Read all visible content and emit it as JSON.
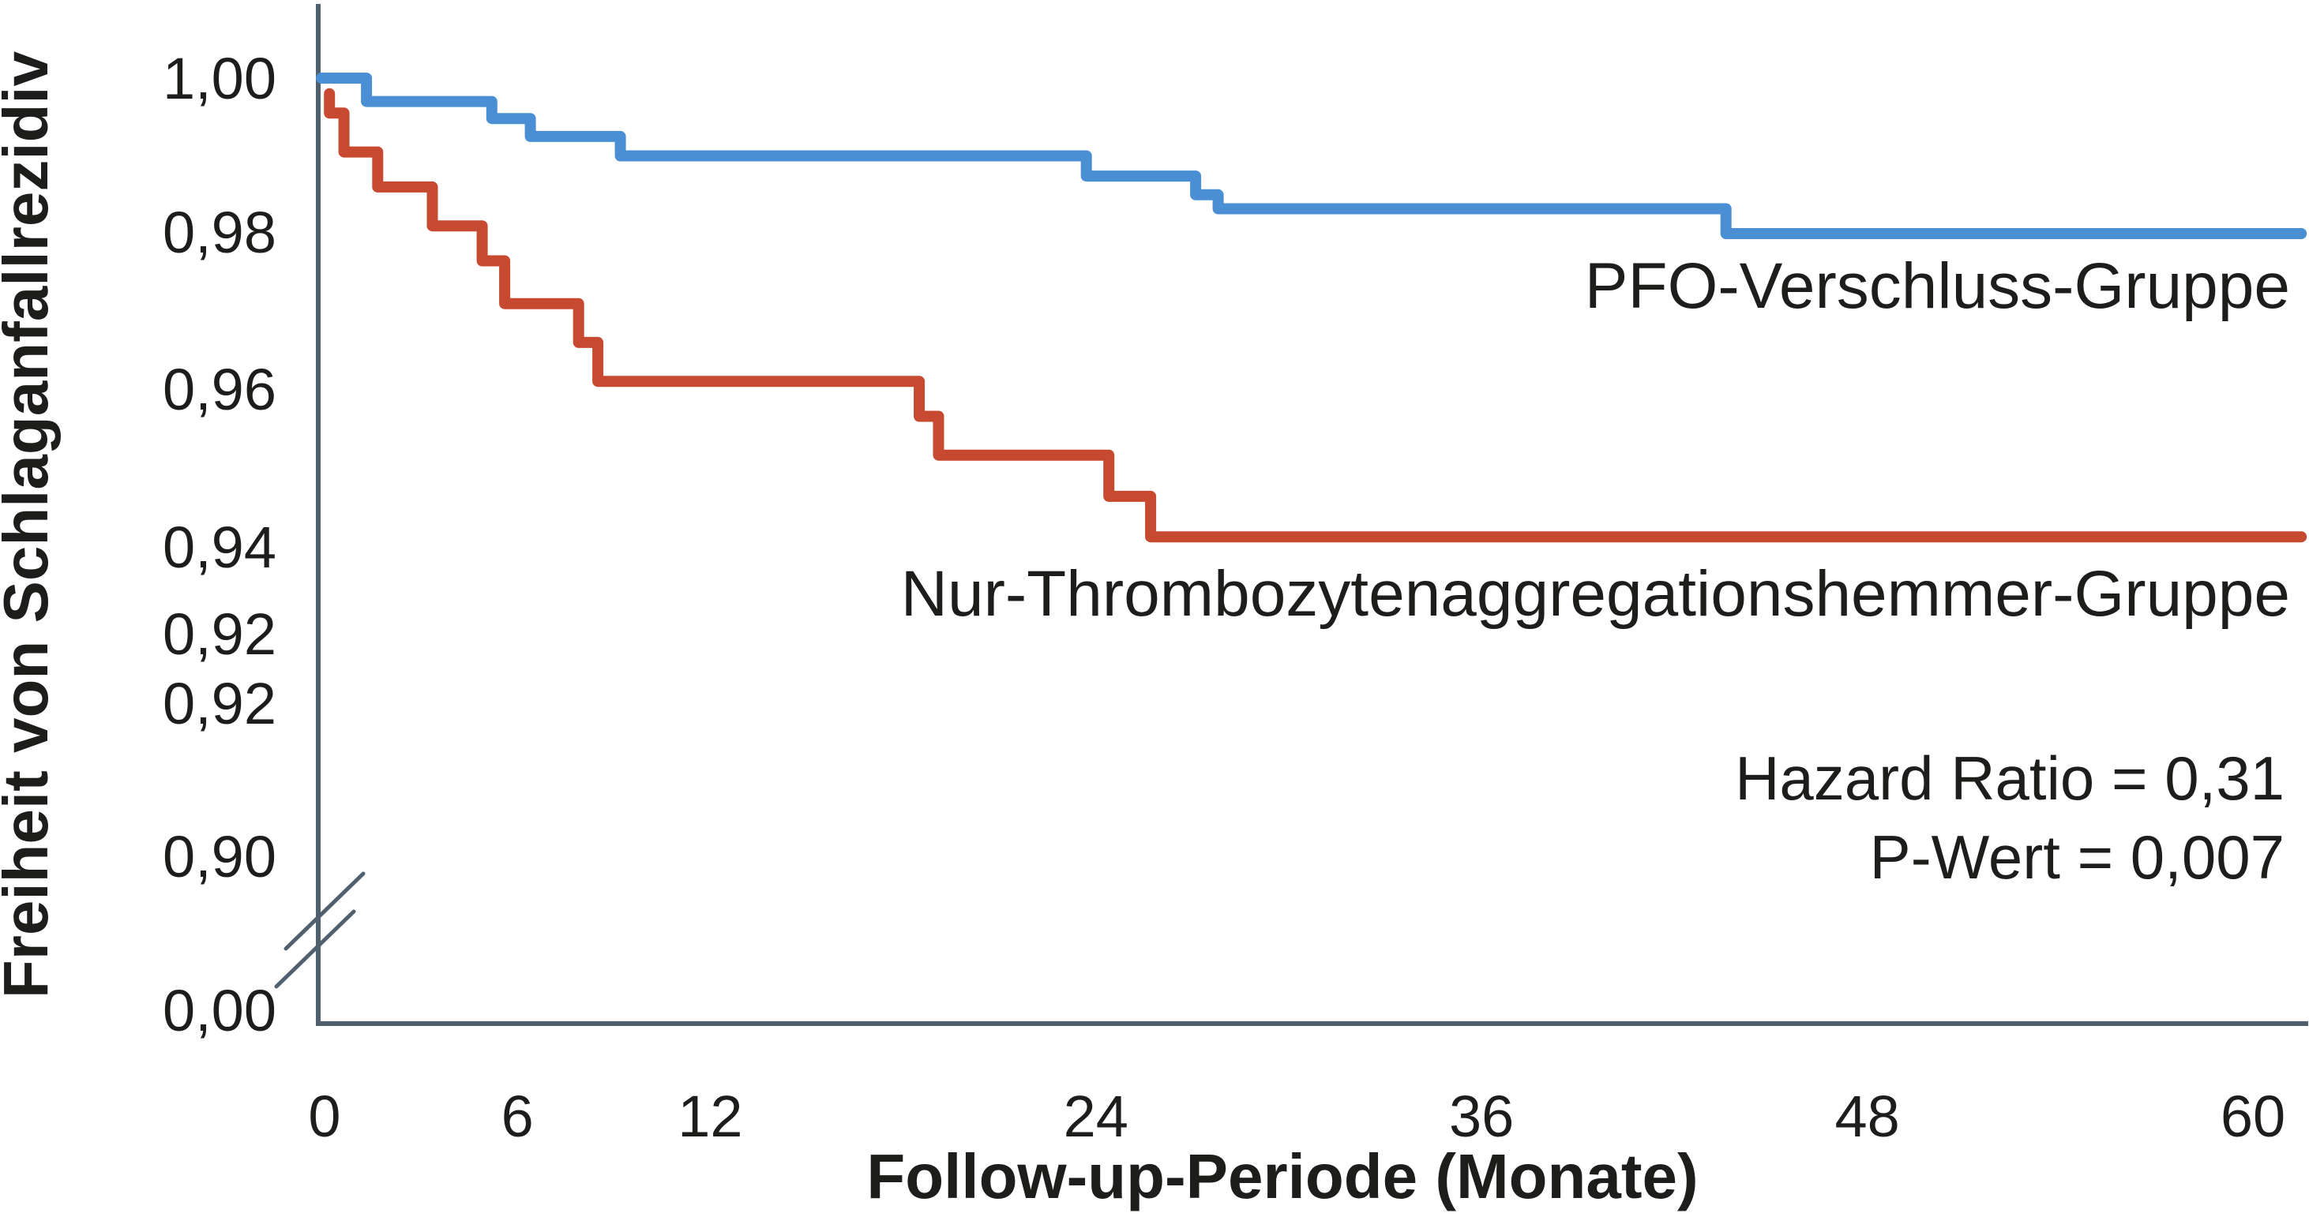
{
  "figure": {
    "y_axis_title": "Freiheit von Schlaganfallrezidiv",
    "x_axis_title": "Follow-up-Periode (Monate)",
    "annotations": {
      "hazard_ratio": "Hazard Ratio = 0,31",
      "p_value": "P-Wert = 0,007"
    }
  },
  "colors": {
    "pfo_blue": "#4a8fd3",
    "antiplatelet_red": "#c7492f",
    "axis": "#51606e",
    "text": "#1d1d1b"
  },
  "chart_data": {
    "type": "line",
    "subtype": "kaplan-meier-step",
    "title": "",
    "xlabel": "Follow-up-Periode (Monate)",
    "ylabel": "Freiheit von Schlaganfallrezidiv",
    "xlim": [
      0,
      61.7
    ],
    "ylim_upper_linear": [
      0.94,
      1.0
    ],
    "y_axis_break": true,
    "grid": false,
    "legend_position": "inline-right",
    "x_ticks": {
      "labels": [
        "0",
        "6",
        "12",
        "24",
        "36",
        "48",
        "60"
      ],
      "values": [
        0,
        6,
        12,
        24,
        36,
        48,
        60
      ]
    },
    "y_ticks": {
      "labels": [
        "1,00",
        "0,98",
        "0,96",
        "0,94",
        "0,92",
        "0,92",
        "0,90",
        "0,00"
      ],
      "values": [
        1.0,
        0.98,
        0.96,
        0.94,
        0.92,
        0.92,
        0.9,
        0.0
      ],
      "note": "duplicate 0,92 tick and compressed non-linear spacing below 0,94 with axis break before 0,00 as printed in original"
    },
    "series": [
      {
        "name": "PFO-Verschluss-Gruppe",
        "color": "#4a8fd3",
        "points": [
          [
            0.1,
            1.0
          ],
          [
            1.5,
            0.997
          ],
          [
            5.4,
            0.9948
          ],
          [
            6.6,
            0.9925
          ],
          [
            9.4,
            0.99
          ],
          [
            23.9,
            0.9874
          ],
          [
            27.3,
            0.985
          ],
          [
            28.0,
            0.9832
          ],
          [
            43.8,
            0.98
          ],
          [
            61.7,
            0.98
          ]
        ]
      },
      {
        "name": "Nur-Thrombozytenaggregationshemmer-Gruppe",
        "color": "#c7492f",
        "points": [
          [
            0.35,
            0.998
          ],
          [
            0.35,
            0.9955
          ],
          [
            0.8,
            0.9905
          ],
          [
            1.85,
            0.986
          ],
          [
            3.55,
            0.981
          ],
          [
            5.1,
            0.9765
          ],
          [
            5.8,
            0.971
          ],
          [
            8.1,
            0.966
          ],
          [
            8.7,
            0.961
          ],
          [
            18.7,
            0.9565
          ],
          [
            19.3,
            0.9515
          ],
          [
            24.6,
            0.9462
          ],
          [
            25.9,
            0.941
          ],
          [
            61.7,
            0.941
          ]
        ]
      }
    ],
    "annotations": [
      "Hazard Ratio = 0,31",
      "P-Wert = 0,007"
    ]
  }
}
